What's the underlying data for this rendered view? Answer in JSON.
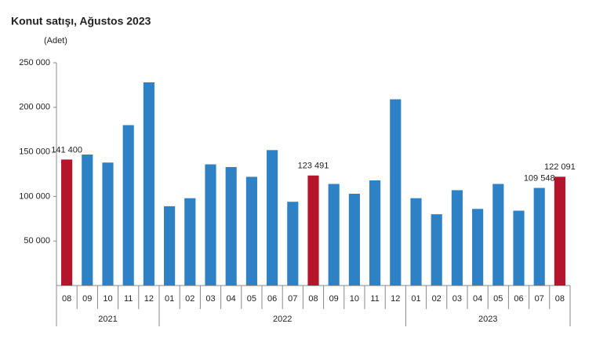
{
  "chart_data": {
    "type": "bar",
    "title": "Konut satışı, Ağustos 2023",
    "subtitle": "(Adet)",
    "categories": [
      "08",
      "09",
      "10",
      "11",
      "12",
      "01",
      "02",
      "03",
      "04",
      "05",
      "06",
      "07",
      "08",
      "09",
      "10",
      "11",
      "12",
      "01",
      "02",
      "03",
      "04",
      "05",
      "06",
      "07",
      "08"
    ],
    "years": [
      "2021",
      "2021",
      "2021",
      "2021",
      "2021",
      "2022",
      "2022",
      "2022",
      "2022",
      "2022",
      "2022",
      "2022",
      "2022",
      "2022",
      "2022",
      "2022",
      "2022",
      "2023",
      "2023",
      "2023",
      "2023",
      "2023",
      "2023",
      "2023",
      "2023"
    ],
    "values": [
      141400,
      147000,
      138000,
      180000,
      228000,
      89000,
      98000,
      136000,
      133000,
      122000,
      152000,
      94000,
      123491,
      114000,
      103000,
      118000,
      209000,
      98000,
      80000,
      107000,
      86000,
      114000,
      84000,
      109548,
      122091
    ],
    "value_labels": [
      "141 400",
      null,
      null,
      null,
      null,
      null,
      null,
      null,
      null,
      null,
      null,
      null,
      "123 491",
      null,
      null,
      null,
      null,
      null,
      null,
      null,
      null,
      null,
      null,
      "109 548",
      "122 091"
    ],
    "colors": [
      "#b5152b",
      "#2f81c5",
      "#2f81c5",
      "#2f81c5",
      "#2f81c5",
      "#2f81c5",
      "#2f81c5",
      "#2f81c5",
      "#2f81c5",
      "#2f81c5",
      "#2f81c5",
      "#2f81c5",
      "#b5152b",
      "#2f81c5",
      "#2f81c5",
      "#2f81c5",
      "#2f81c5",
      "#2f81c5",
      "#2f81c5",
      "#2f81c5",
      "#2f81c5",
      "#2f81c5",
      "#2f81c5",
      "#2f81c5",
      "#b5152b"
    ],
    "ylim": [
      0,
      250000
    ],
    "yticks": [
      {
        "value": 50000,
        "label": "50 000"
      },
      {
        "value": 100000,
        "label": "100 000"
      },
      {
        "value": 150000,
        "label": "150 000"
      },
      {
        "value": 200000,
        "label": "200 000"
      },
      {
        "value": 250000,
        "label": "250 000"
      }
    ],
    "grid": false
  }
}
